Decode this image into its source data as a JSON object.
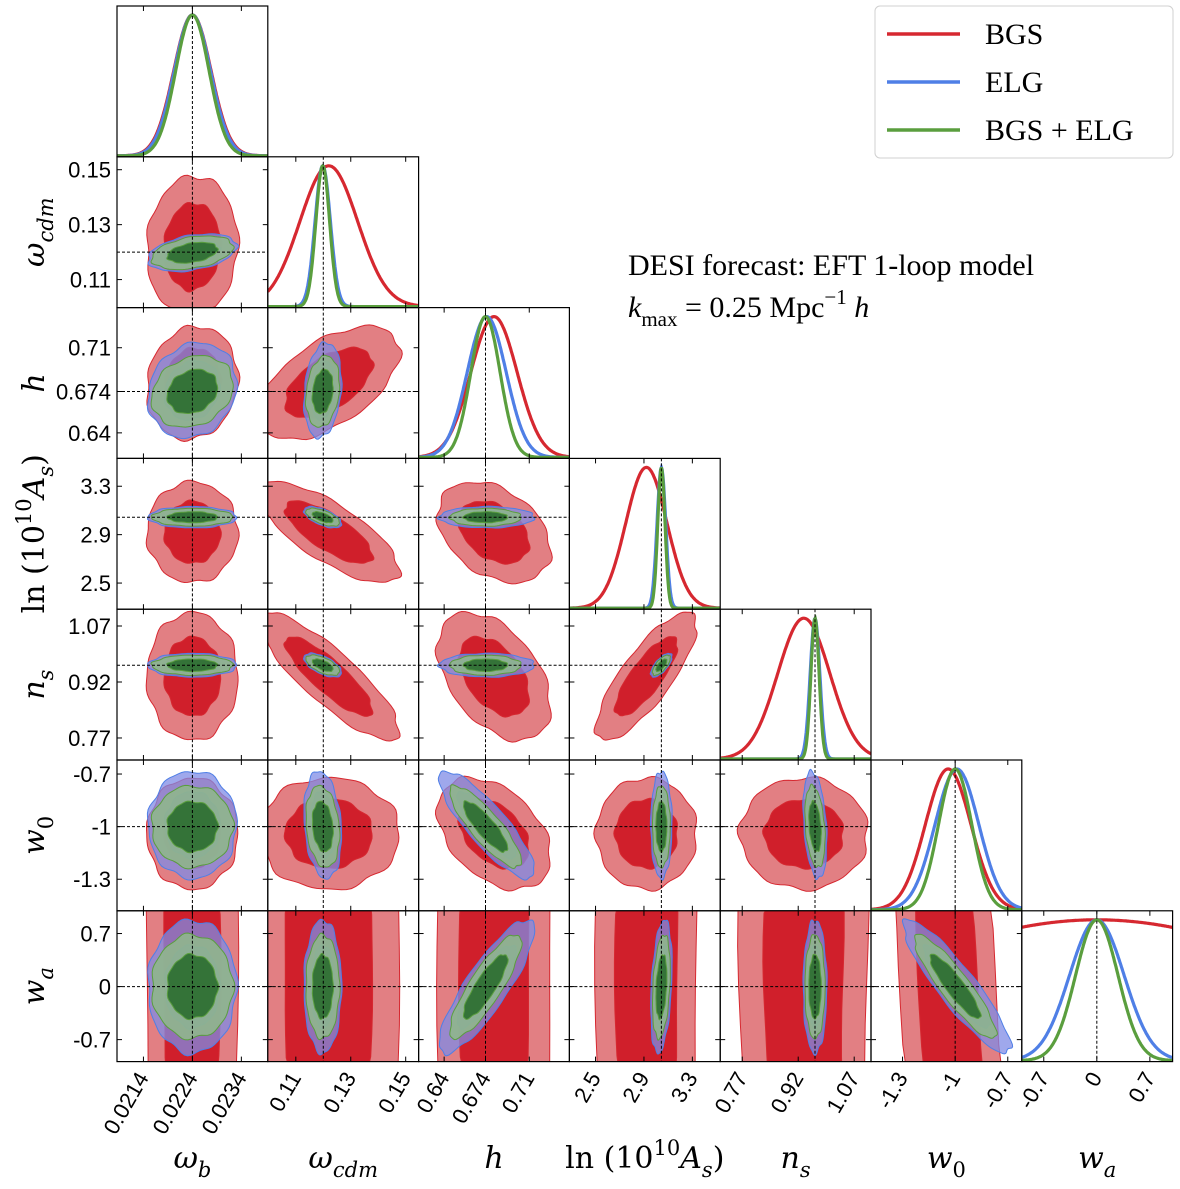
{
  "chart_data": {
    "type": "corner",
    "annotation": {
      "line1": "DESI forecast: EFT 1-loop model",
      "line2": [
        {
          "t": "k",
          "i": true
        },
        {
          "t": "max",
          "sub": true
        },
        {
          "t": " = 0.25 Mpc"
        },
        {
          "t": "−1",
          "sup": true
        },
        {
          "t": " h",
          "i": true
        }
      ]
    },
    "legend": {
      "placement": "top-right",
      "entries": [
        "BGS",
        "ELG",
        "BGS + ELG"
      ]
    },
    "params": [
      {
        "key": "wb",
        "label": [
          {
            "t": "ω",
            "i": true
          },
          {
            "t": "b",
            "sub": true,
            "i": true
          }
        ],
        "range": [
          0.02086,
          0.02394
        ],
        "fiducial": 0.0224,
        "ticks": [
          0.0214,
          0.0224,
          0.0234
        ],
        "tick_labels": [
          "0.0214",
          "0.0224",
          "0.0234"
        ]
      },
      {
        "key": "wcdm",
        "label": [
          {
            "t": "ω",
            "i": true
          },
          {
            "t": "cdm",
            "sub": true,
            "i": true
          }
        ],
        "range": [
          0.0998,
          0.1547
        ],
        "fiducial": 0.12,
        "ticks": [
          0.11,
          0.13,
          0.15
        ],
        "tick_labels": [
          "0.11",
          "0.13",
          "0.15"
        ]
      },
      {
        "key": "h",
        "label": [
          {
            "t": "h",
            "i": true
          }
        ],
        "range": [
          0.619,
          0.743
        ],
        "fiducial": 0.674,
        "ticks": [
          0.64,
          0.674,
          0.71
        ],
        "tick_labels": [
          "0.64",
          "0.674",
          "0.71"
        ]
      },
      {
        "key": "lnAs",
        "label": [
          {
            "t": "ln "
          },
          {
            "t": "(10"
          },
          {
            "t": "10",
            "sup": true
          },
          {
            "t": "A",
            "i": true
          },
          {
            "t": "s",
            "sub": true,
            "i": true
          },
          {
            "t": ")"
          }
        ],
        "range": [
          2.284,
          3.53
        ],
        "fiducial": 3.044,
        "ticks": [
          2.5,
          2.9,
          3.3
        ],
        "tick_labels": [
          "2.5",
          "2.9",
          "3.3"
        ]
      },
      {
        "key": "ns",
        "label": [
          {
            "t": "n",
            "i": true
          },
          {
            "t": "s",
            "sub": true,
            "i": true
          }
        ],
        "range": [
          0.711,
          1.115
        ],
        "fiducial": 0.965,
        "ticks": [
          0.77,
          0.92,
          1.07
        ],
        "tick_labels": [
          "0.77",
          "0.92",
          "1.07"
        ]
      },
      {
        "key": "w0",
        "label": [
          {
            "t": "w",
            "i": true
          },
          {
            "t": "0",
            "sub": true
          }
        ],
        "range": [
          -1.48,
          -0.62
        ],
        "fiducial": -1,
        "ticks": [
          -1.3,
          -1,
          -0.7
        ],
        "tick_labels": [
          "-1.3",
          "-1",
          "-0.7"
        ]
      },
      {
        "key": "wa",
        "label": [
          {
            "t": "w",
            "i": true
          },
          {
            "t": "a",
            "sub": true,
            "i": true
          }
        ],
        "range": [
          -0.99,
          1.0
        ],
        "fiducial": 0,
        "ticks": [
          -0.7,
          0,
          0.7
        ],
        "tick_labels": [
          "-0.7",
          "0",
          "0.7"
        ]
      }
    ],
    "series": [
      {
        "name": "BGS",
        "line_color": "#d62830",
        "fill_inner": "#d01f2b",
        "fill_outer": "#e27f83",
        "fill_opacity": 1,
        "mean": {
          "wb": 0.0224,
          "wcdm": 0.122,
          "h": 0.681,
          "lnAs": 2.92,
          "ns": 0.935,
          "w0": -1.04,
          "wa": 0
        },
        "sigma": {
          "wb": 0.00038,
          "wcdm": 0.0105,
          "h": 0.019,
          "lnAs": 0.17,
          "ns": 0.07,
          "w0": 0.13,
          "wa": 3.0
        },
        "corr": {
          "wb|wcdm": 0.05,
          "wb|h": 0.1,
          "wcdm|h": 0.55,
          "wcdm|lnAs": -0.75,
          "wcdm|ns": -0.85,
          "h|lnAs": -0.35,
          "h|ns": -0.45,
          "lnAs|ns": 0.8,
          "h|w0": -0.4,
          "w0|wa": -0.5
        }
      },
      {
        "name": "ELG",
        "line_color": "#4f7fe6",
        "fill_inner": "#6a72d8",
        "fill_outer": "#7f8be6",
        "fill_opacity": 0.75,
        "mean": {
          "wb": 0.0224,
          "wcdm": 0.1198,
          "h": 0.675,
          "lnAs": 3.044,
          "ns": 0.965,
          "w0": -0.99,
          "wa": 0
        },
        "sigma": {
          "wb": 0.00037,
          "wcdm": 0.0028,
          "h": 0.016,
          "lnAs": 0.036,
          "ns": 0.013,
          "w0": 0.125,
          "wa": 0.36
        },
        "corr": {
          "wb|wcdm": 0.35,
          "wb|h": 0.15,
          "wcdm|h": 0.2,
          "wcdm|lnAs": -0.6,
          "wcdm|ns": -0.6,
          "lnAs|ns": 0.7,
          "h|w0": -0.85,
          "h|wa": 0.85,
          "w0|wa": -0.9,
          "lnAs|wa": 0.3,
          "ns|w0": -0.3,
          "wcdm|w0": -0.2
        }
      },
      {
        "name": "BGS + ELG",
        "line_color": "#5a9e3e",
        "fill_inner": "#2c6e30",
        "fill_outer": "#8fb48e",
        "fill_opacity": 0.92,
        "mean": {
          "wb": 0.0224,
          "wcdm": 0.1198,
          "h": 0.674,
          "lnAs": 3.044,
          "ns": 0.965,
          "w0": -1.0,
          "wa": 0
        },
        "sigma": {
          "wb": 0.00034,
          "wcdm": 0.0025,
          "h": 0.012,
          "lnAs": 0.03,
          "ns": 0.011,
          "w0": 0.095,
          "wa": 0.28
        },
        "corr": {
          "wb|wcdm": 0.35,
          "wb|h": 0.2,
          "wcdm|h": 0.2,
          "wcdm|lnAs": -0.6,
          "wcdm|ns": -0.6,
          "lnAs|ns": 0.7,
          "h|w0": -0.85,
          "h|wa": 0.85,
          "w0|wa": -0.9,
          "lnAs|wa": 0.3,
          "ns|w0": -0.3,
          "wcdm|w0": -0.2
        }
      }
    ],
    "contour_levels": [
      "68%",
      "95%"
    ],
    "grid": false
  }
}
